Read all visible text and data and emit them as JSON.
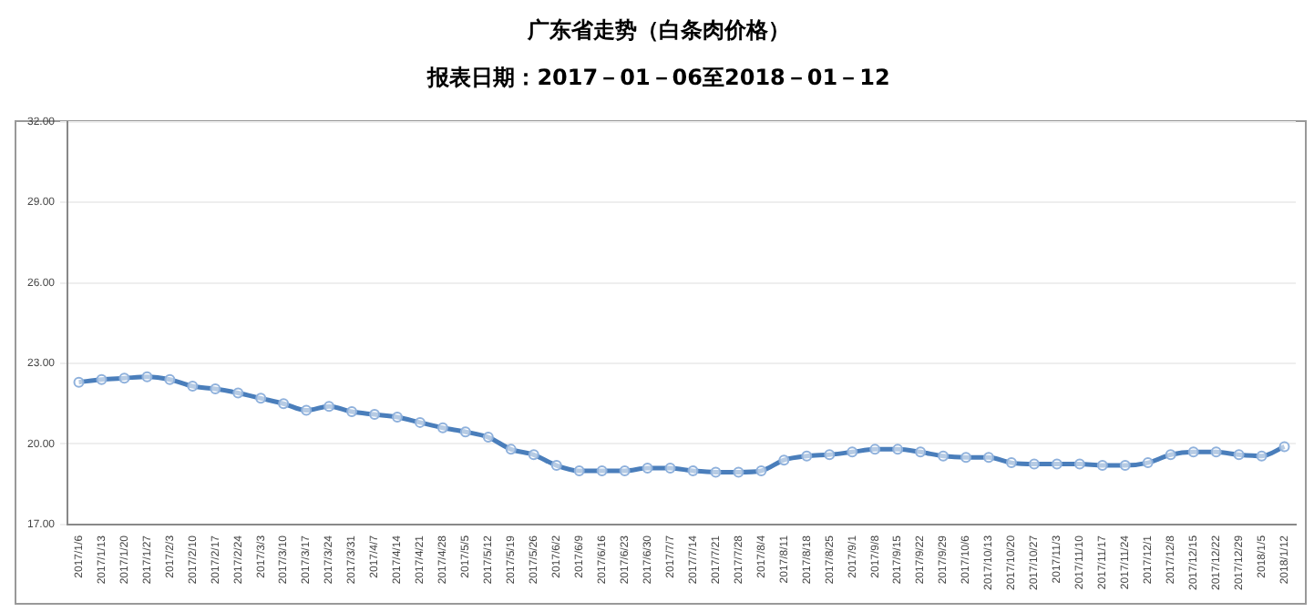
{
  "chart_data": {
    "type": "line",
    "title": "广东省走势（白条肉价格）",
    "subtitle": "报表日期：2017－01－06至2018－01－12",
    "categories": [
      "2017/1/6",
      "2017/1/13",
      "2017/1/20",
      "2017/1/27",
      "2017/2/3",
      "2017/2/10",
      "2017/2/17",
      "2017/2/24",
      "2017/3/3",
      "2017/3/10",
      "2017/3/17",
      "2017/3/24",
      "2017/3/31",
      "2017/4/7",
      "2017/4/14",
      "2017/4/21",
      "2017/4/28",
      "2017/5/5",
      "2017/5/12",
      "2017/5/19",
      "2017/5/26",
      "2017/6/2",
      "2017/6/9",
      "2017/6/16",
      "2017/6/23",
      "2017/6/30",
      "2017/7/7",
      "2017/7/14",
      "2017/7/21",
      "2017/7/28",
      "2017/8/4",
      "2017/8/11",
      "2017/8/18",
      "2017/8/25",
      "2017/9/1",
      "2017/9/8",
      "2017/9/15",
      "2017/9/22",
      "2017/9/29",
      "2017/10/6",
      "2017/10/13",
      "2017/10/20",
      "2017/10/27",
      "2017/11/3",
      "2017/11/10",
      "2017/11/17",
      "2017/11/24",
      "2017/12/1",
      "2017/12/8",
      "2017/12/15",
      "2017/12/22",
      "2017/12/29",
      "2018/1/5",
      "2018/1/12"
    ],
    "series": [
      {
        "color": "#4a7ebb",
        "values": [
          22.3,
          22.4,
          22.45,
          22.5,
          22.4,
          22.15,
          22.05,
          21.9,
          21.7,
          21.5,
          21.25,
          21.4,
          21.2,
          21.1,
          21.0,
          20.8,
          20.6,
          20.45,
          20.25,
          19.8,
          19.6,
          19.2,
          19.0,
          19.0,
          19.0,
          19.1,
          19.1,
          19.0,
          18.95,
          18.95,
          19.0,
          19.4,
          19.55,
          19.6,
          19.7,
          19.8,
          19.8,
          19.7,
          19.55,
          19.5,
          19.5,
          19.3,
          19.25,
          19.25,
          19.25,
          19.2,
          19.2,
          19.3,
          19.6,
          19.7,
          19.7,
          19.6,
          19.55,
          19.9
        ]
      }
    ],
    "ylim": [
      17,
      32
    ],
    "yticks": [
      {
        "value": 17,
        "label": "17.00"
      },
      {
        "value": 20,
        "label": "20.00"
      },
      {
        "value": 23,
        "label": "23.00"
      },
      {
        "value": 26,
        "label": "26.00"
      },
      {
        "value": 29,
        "label": "29.00"
      },
      {
        "value": 32,
        "label": "32.00"
      }
    ],
    "grid": "y",
    "legend": false,
    "marker": "circle",
    "line_style": "solid"
  }
}
